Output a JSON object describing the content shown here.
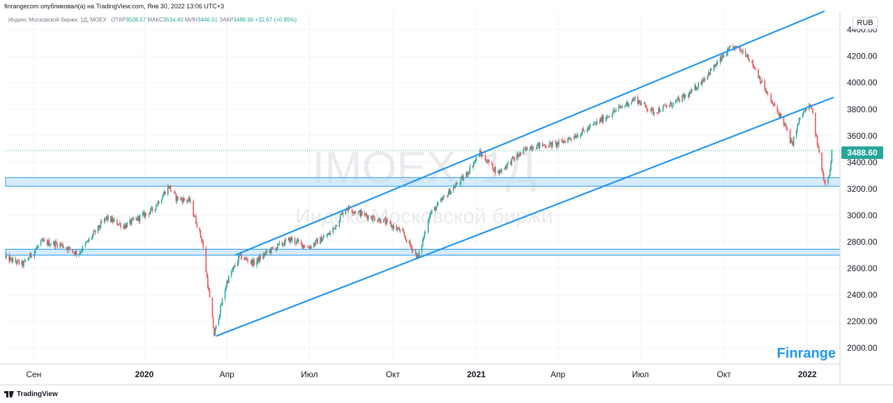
{
  "header": {
    "published_line": "finrangecom опубликовал(а) на TradingView.com, Янв 30, 2022 13:06 UTC+3"
  },
  "infobar": {
    "symbol": "Индекс Московской биржи, 1Д, MOEX",
    "open_label": "ОТКР",
    "open": "3508.57",
    "high_label": "МАКС",
    "high": "3534.40",
    "low_label": "МИН",
    "low": "3446.01",
    "close_label": "ЗАКР",
    "close": "3488.60",
    "change": "+32.67 (+0.95%)"
  },
  "watermark": {
    "ticker": "IMOEX, 1Д",
    "name": "Индекс Московской биржи"
  },
  "currency": "RUB",
  "last_price": "3488.60",
  "brand": "Finrange",
  "footer": {
    "logo_text": "TradingView"
  },
  "colors": {
    "up": "#26a69a",
    "down": "#ef5350",
    "trend": "#2196f3",
    "zone_fill": "#bbdefb"
  },
  "chart_data": {
    "type": "candlestick",
    "x_ticks": [
      "Сен",
      "2020",
      "Апр",
      "Июл",
      "Окт",
      "2021",
      "Апр",
      "Июл",
      "Окт",
      "2022"
    ],
    "x_tick_bold": [
      false,
      true,
      false,
      false,
      false,
      true,
      false,
      false,
      false,
      true
    ],
    "y_ticks": [
      "4400.00",
      "4200.00",
      "4000.00",
      "3800.00",
      "3600.00",
      "3400.00",
      "3200.00",
      "3000.00",
      "2800.00",
      "2600.00",
      "2400.00",
      "2200.00",
      "2000.00"
    ],
    "y_range": [
      1880,
      4540
    ],
    "price_path": [
      [
        "2019-08-01",
        2680
      ],
      [
        "2019-08-20",
        2630
      ],
      [
        "2019-09-10",
        2800
      ],
      [
        "2019-10-01",
        2780
      ],
      [
        "2019-10-20",
        2710
      ],
      [
        "2019-11-20",
        2980
      ],
      [
        "2019-12-10",
        2920
      ],
      [
        "2020-01-10",
        3040
      ],
      [
        "2020-01-28",
        3220
      ],
      [
        "2020-02-05",
        3130
      ],
      [
        "2020-02-20",
        3110
      ],
      [
        "2020-03-05",
        2800
      ],
      [
        "2020-03-18",
        2100
      ],
      [
        "2020-04-01",
        2500
      ],
      [
        "2020-04-15",
        2690
      ],
      [
        "2020-05-01",
        2640
      ],
      [
        "2020-05-15",
        2720
      ],
      [
        "2020-06-10",
        2820
      ],
      [
        "2020-06-30",
        2760
      ],
      [
        "2020-07-25",
        2870
      ],
      [
        "2020-08-10",
        3060
      ],
      [
        "2020-09-01",
        3000
      ],
      [
        "2020-09-20",
        2960
      ],
      [
        "2020-10-10",
        2880
      ],
      [
        "2020-10-29",
        2680
      ],
      [
        "2020-11-10",
        3000
      ],
      [
        "2020-12-01",
        3170
      ],
      [
        "2020-12-20",
        3300
      ],
      [
        "2021-01-05",
        3470
      ],
      [
        "2021-01-25",
        3320
      ],
      [
        "2021-02-10",
        3420
      ],
      [
        "2021-03-01",
        3520
      ],
      [
        "2021-04-01",
        3540
      ],
      [
        "2021-05-01",
        3640
      ],
      [
        "2021-06-01",
        3780
      ],
      [
        "2021-06-25",
        3880
      ],
      [
        "2021-07-15",
        3780
      ],
      [
        "2021-08-05",
        3840
      ],
      [
        "2021-08-25",
        3920
      ],
      [
        "2021-09-15",
        4080
      ],
      [
        "2021-10-10",
        4270
      ],
      [
        "2021-10-25",
        4230
      ],
      [
        "2021-11-05",
        4100
      ],
      [
        "2021-11-20",
        3880
      ],
      [
        "2021-12-05",
        3720
      ],
      [
        "2021-12-15",
        3530
      ],
      [
        "2021-12-25",
        3760
      ],
      [
        "2022-01-05",
        3830
      ],
      [
        "2022-01-12",
        3540
      ],
      [
        "2022-01-20",
        3250
      ],
      [
        "2022-01-26",
        3330
      ],
      [
        "2022-01-28",
        3488.6
      ]
    ],
    "channel_lines": [
      {
        "from": [
          "2020-04-10",
          2700
        ],
        "to": [
          "2022-01-20",
          4540
        ]
      },
      {
        "from": [
          "2020-03-20",
          2090
        ],
        "to": [
          "2022-01-30",
          3890
        ]
      }
    ],
    "support_zones": [
      [
        3220,
        3285
      ],
      [
        2700,
        2745
      ]
    ],
    "last_close": 3488.6
  }
}
